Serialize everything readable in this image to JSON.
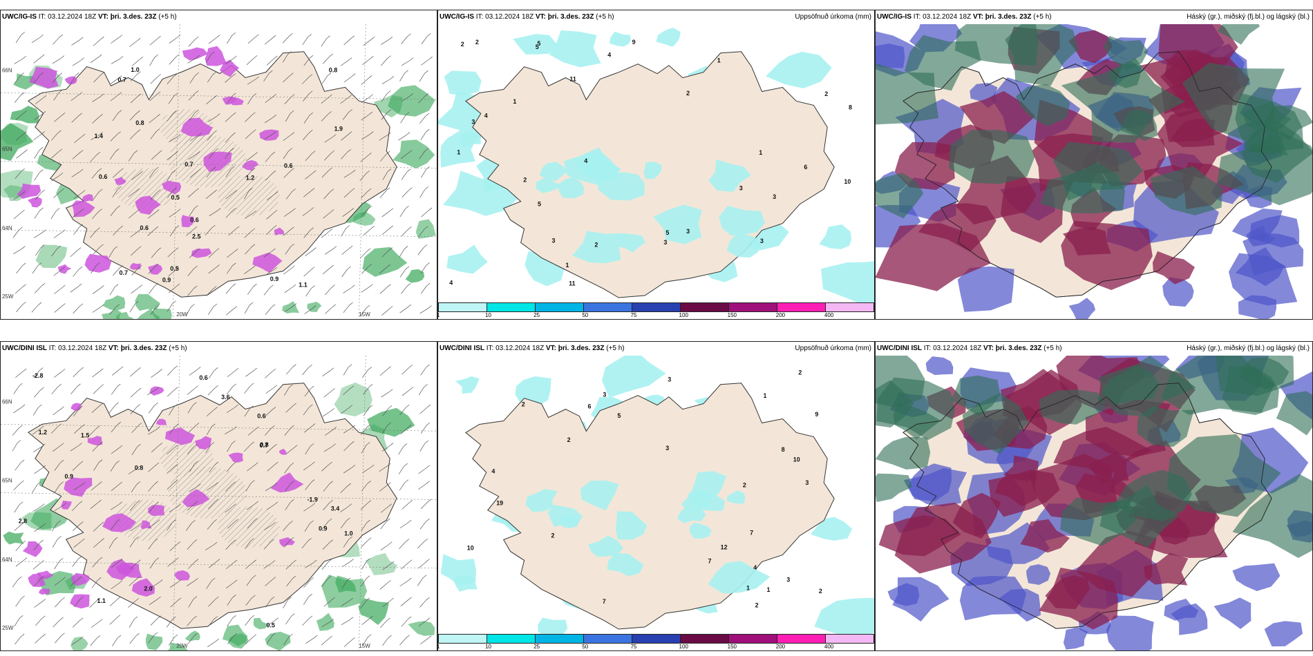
{
  "colors": {
    "land": "#f3e6d8",
    "sea": "#ffffff",
    "precip_light": "#a7f1f1",
    "snow_purple": "#cc55dd",
    "green_band": "#3aa85a",
    "high_cloud": "#2f6e57",
    "mid_cloud": "#8a1f4d",
    "low_cloud": "#4f56c9"
  },
  "panels": [
    {
      "id": "top-left",
      "model": "UWC/IG-IS",
      "it_label": "IT:",
      "it_value": "03.12.2024 18Z",
      "vt_label": "VT:",
      "vt_value": "þri. 3.des. 23Z",
      "lead": "(+5 h)",
      "right_title": "",
      "axis_labels": [
        "20W",
        "15W",
        "66N",
        "64N",
        "65N",
        "25W"
      ],
      "values": [
        "0.5",
        "0.9",
        "0.8",
        "0.7",
        "1.0",
        "1.1",
        "1.2",
        "0.6",
        "2.5",
        "1.9",
        "0.6",
        "0.7",
        "0.9",
        "0.8",
        "0.6",
        "0.5",
        "1.4",
        "0.7",
        "0.6"
      ]
    },
    {
      "id": "top-middle",
      "model": "UWC/IG-IS",
      "it_label": "IT:",
      "it_value": "03.12.2024 18Z",
      "vt_label": "VT:",
      "vt_value": "þri. 3.des. 23Z",
      "lead": "(+5 h)",
      "right_title": "Uppsöfnuð úrkoma (mm)",
      "axis_labels": [
        "66N"
      ],
      "values": [
        "11",
        "5",
        "9",
        "8",
        "10",
        "6",
        "5",
        "3",
        "2",
        "4",
        "3",
        "2",
        "1",
        "3",
        "4",
        "5",
        "2",
        "3",
        "1",
        "11",
        "2",
        "3",
        "4",
        "5",
        "3",
        "2",
        "1",
        "1",
        "3",
        "2",
        "1",
        "4"
      ]
    },
    {
      "id": "top-right",
      "model": "UWC/IG-IS",
      "it_label": "IT:",
      "it_value": "03.12.2024 18Z",
      "vt_label": "VT:",
      "vt_value": "þri. 3.des. 23Z",
      "lead": "(+5 h)",
      "right_title": "Háský (gr.), miðský (fj.bl.) og lágský (bl.)",
      "axis_labels": [],
      "values": []
    },
    {
      "id": "bottom-left",
      "model": "UWC/DINI ISL",
      "it_label": "IT:",
      "it_value": "03.12.2024 18Z",
      "vt_label": "VT:",
      "vt_value": "þri. 3.des. 23Z",
      "lead": "(+5 h)",
      "right_title": "",
      "axis_labels": [
        "20W",
        "15W",
        "66N",
        "64N",
        "65N",
        "25W"
      ],
      "values": [
        "1.2",
        "0.5",
        "0.6",
        "0.8",
        "2.0",
        "1.1",
        "3.6",
        "2.8",
        "1.5",
        "-2.8",
        "3.4",
        "0.9",
        "0.8",
        "0.6",
        "0.7",
        "-1.9",
        "0.9",
        "1.0"
      ]
    },
    {
      "id": "bottom-middle",
      "model": "UWC/DINI ISL",
      "it_label": "IT:",
      "it_value": "03.12.2024 18Z",
      "vt_label": "VT:",
      "vt_value": "þri. 3.des. 23Z",
      "lead": "(+5 h)",
      "right_title": "Uppsöfnuð úrkoma (mm)",
      "axis_labels": [
        "66N"
      ],
      "values": [
        "10",
        "5",
        "19",
        "8",
        "9",
        "7",
        "12",
        "10",
        "7",
        "1",
        "2",
        "3",
        "6",
        "7",
        "4",
        "3",
        "2",
        "1",
        "3",
        "2",
        "3",
        "1",
        "2",
        "4",
        "2",
        "3",
        "2",
        "2"
      ]
    },
    {
      "id": "bottom-right",
      "model": "UWC/DINI ISL",
      "it_label": "IT:",
      "it_value": "03.12.2024 18Z",
      "vt_label": "VT:",
      "vt_value": "þri. 3.des. 23Z",
      "lead": "(+5 h)",
      "right_title": "Háský (gr.), miðský (fj.bl.) og lágský (bl.)",
      "axis_labels": [],
      "values": []
    }
  ],
  "colorbar": {
    "ticks": [
      "1",
      "10",
      "25",
      "50",
      "75",
      "100",
      "150",
      "200",
      "400"
    ],
    "colors": [
      "#bff5f5",
      "#00e5e5",
      "#00b4e6",
      "#3b74e0",
      "#2840b0",
      "#6a0b45",
      "#a0107a",
      "#ff1fb4",
      "#f4b8f4"
    ]
  }
}
